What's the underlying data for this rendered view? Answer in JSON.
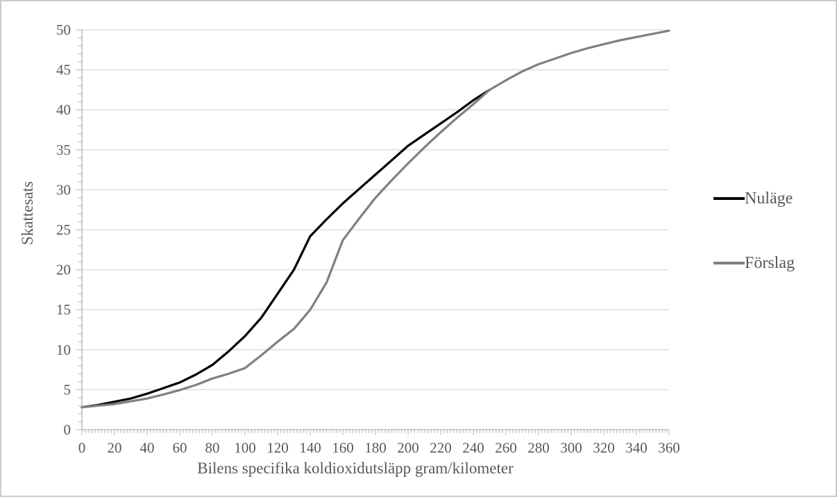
{
  "figure": {
    "background": "#FFFFFF",
    "border_color": "#CCCCCC",
    "text_color": "#595959",
    "gridline_color": "#D9D9D9",
    "axis_color": "#BFBFBF"
  },
  "chart_data": {
    "type": "line",
    "title": "",
    "xlabel": "Bilens specifika koldioxidutsläpp gram/kilometer",
    "ylabel": "Skattesats",
    "xlim": [
      0,
      360
    ],
    "ylim": [
      0,
      50
    ],
    "x_ticks": [
      0,
      20,
      40,
      60,
      80,
      100,
      120,
      140,
      160,
      180,
      200,
      220,
      240,
      260,
      280,
      300,
      320,
      340,
      360
    ],
    "y_ticks": [
      0,
      5,
      10,
      15,
      20,
      25,
      30,
      35,
      40,
      45,
      50
    ],
    "x_minor_tick_step": 2,
    "y_minor_tick_step": 1,
    "grid": "horizontal-major-only",
    "legend_position": "right",
    "series": [
      {
        "name": "Nuläge",
        "color": "#000000",
        "line_width": 3.25,
        "points": [
          [
            0,
            2.8
          ],
          [
            10,
            3.1
          ],
          [
            20,
            3.5
          ],
          [
            30,
            3.9
          ],
          [
            40,
            4.5
          ],
          [
            50,
            5.2
          ],
          [
            60,
            5.9
          ],
          [
            70,
            6.9
          ],
          [
            80,
            8.1
          ],
          [
            90,
            9.8
          ],
          [
            100,
            11.7
          ],
          [
            110,
            14.0
          ],
          [
            120,
            17.0
          ],
          [
            130,
            20.0
          ],
          [
            140,
            24.2
          ],
          [
            150,
            26.3
          ],
          [
            160,
            28.3
          ],
          [
            170,
            30.1
          ],
          [
            180,
            31.9
          ],
          [
            190,
            33.7
          ],
          [
            200,
            35.5
          ],
          [
            210,
            36.9
          ],
          [
            220,
            38.3
          ],
          [
            230,
            39.7
          ],
          [
            240,
            41.2
          ],
          [
            250,
            42.5
          ]
        ]
      },
      {
        "name": "Förslag",
        "color": "#808080",
        "line_width": 3.25,
        "points": [
          [
            0,
            2.8
          ],
          [
            10,
            3.0
          ],
          [
            20,
            3.2
          ],
          [
            30,
            3.55
          ],
          [
            40,
            3.9
          ],
          [
            50,
            4.4
          ],
          [
            60,
            4.95
          ],
          [
            70,
            5.6
          ],
          [
            80,
            6.4
          ],
          [
            90,
            7.0
          ],
          [
            100,
            7.7
          ],
          [
            110,
            9.3
          ],
          [
            120,
            11.0
          ],
          [
            130,
            12.6
          ],
          [
            140,
            15.0
          ],
          [
            150,
            18.4
          ],
          [
            160,
            23.7
          ],
          [
            170,
            26.4
          ],
          [
            180,
            29.0
          ],
          [
            190,
            31.2
          ],
          [
            200,
            33.3
          ],
          [
            210,
            35.3
          ],
          [
            220,
            37.2
          ],
          [
            230,
            39.0
          ],
          [
            240,
            40.7
          ],
          [
            250,
            42.5
          ],
          [
            260,
            43.7
          ],
          [
            270,
            44.8
          ],
          [
            280,
            45.7
          ],
          [
            290,
            46.4
          ],
          [
            300,
            47.1
          ],
          [
            310,
            47.7
          ],
          [
            320,
            48.2
          ],
          [
            330,
            48.7
          ],
          [
            340,
            49.1
          ],
          [
            350,
            49.5
          ],
          [
            360,
            49.9
          ]
        ]
      }
    ]
  }
}
